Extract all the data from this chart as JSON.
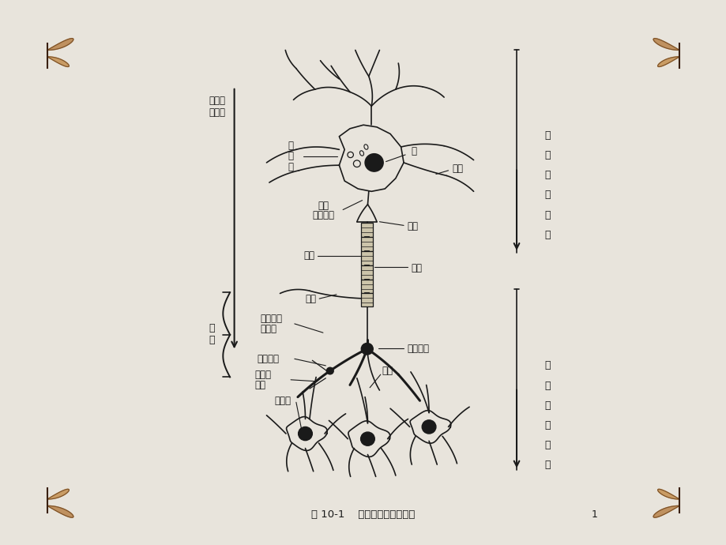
{
  "bg_color": "#e8e4dc",
  "center_bg": "#f5f2ec",
  "ink": "#1a1a1a",
  "title": "图 10-1    神经元和突触模式图",
  "page_num": "1",
  "lw": 1.2,
  "lw2": 2.2,
  "labels": {
    "signal_dir_1": "信号传",
    "signal_dir_2": "递方向",
    "cell_body_top_1": "细",
    "cell_body_top_2": "胞",
    "cell_body_top_3": "体",
    "nucleus": "核",
    "axon_initial_1": "轴突",
    "axon_initial_2": "（始段）",
    "dendrite_upper": "树突",
    "axon_hillock": "轴丘",
    "axon": "轴突",
    "myelin": "髓鞘",
    "collateral": "侧支",
    "axon_terminal": "轴突末梢",
    "pre_terminal_1": "突触前轴",
    "pre_terminal_2": "突末梢",
    "syn_cleft": "突触间隙",
    "post_dendrite_1": "突触后",
    "post_dendrite_2": "树突",
    "cell_body_lower": "细胞体",
    "dendrite_lower": "树突",
    "synapse_label": "突\n触",
    "pre_neuron_1": "突",
    "pre_neuron_2": "触",
    "pre_neuron_3": "前",
    "pre_neuron_4": "神",
    "pre_neuron_5": "经",
    "pre_neuron_6": "元",
    "post_neuron_1": "突",
    "post_neuron_2": "触",
    "post_neuron_3": "后",
    "post_neuron_4": "神",
    "post_neuron_5": "经",
    "post_neuron_6": "元"
  }
}
